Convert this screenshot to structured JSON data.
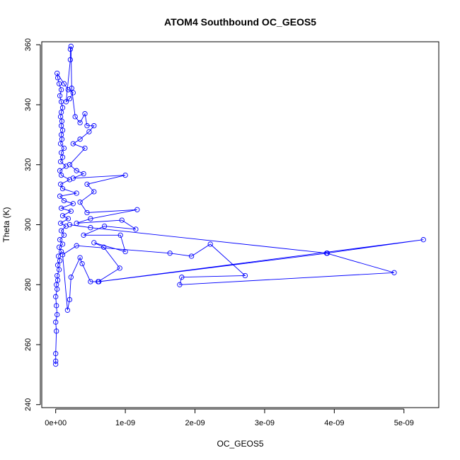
{
  "chart_data": {
    "type": "line",
    "title": "ATOM4 Southbound OC_GEOS5",
    "xlabel": "OC_GEOS5",
    "ylabel": "Theta (K)",
    "xlim": [
      -2e-10,
      5.5e-09
    ],
    "ylim": [
      239,
      361
    ],
    "x_ticks": [
      {
        "value": 0,
        "label": "0e+00"
      },
      {
        "value": 1e-09,
        "label": "1e-09"
      },
      {
        "value": 2e-09,
        "label": "2e-09"
      },
      {
        "value": 3e-09,
        "label": "3e-09"
      },
      {
        "value": 4e-09,
        "label": "4e-09"
      },
      {
        "value": 5e-09,
        "label": "5e-09"
      }
    ],
    "y_ticks": [
      {
        "value": 240,
        "label": "240"
      },
      {
        "value": 260,
        "label": "260"
      },
      {
        "value": 280,
        "label": "280"
      },
      {
        "value": 300,
        "label": "300"
      },
      {
        "value": 320,
        "label": "320"
      },
      {
        "value": 340,
        "label": "340"
      },
      {
        "value": 360,
        "label": "360"
      }
    ],
    "grid": false,
    "series_color": "#0000ff",
    "marker": "open-circle",
    "series": [
      {
        "name": "",
        "points": [
          [
            0.0,
            253.5
          ],
          [
            0.0,
            254.5
          ],
          [
            0.0,
            257.0
          ],
          [
            1e-11,
            264.5
          ],
          [
            0.0,
            267.5
          ],
          [
            2e-11,
            270.0
          ],
          [
            1e-11,
            273.0
          ],
          [
            0.0,
            276.0
          ],
          [
            2e-11,
            278.5
          ],
          [
            1e-11,
            280.0
          ],
          [
            3e-11,
            281.5
          ],
          [
            2e-11,
            283.0
          ],
          [
            5e-11,
            285.0
          ],
          [
            3e-11,
            286.5
          ],
          [
            6e-11,
            288.0
          ],
          [
            4e-11,
            289.5
          ],
          [
            8e-11,
            291.0
          ],
          [
            5e-11,
            292.5
          ],
          [
            1e-10,
            293.5
          ],
          [
            6e-11,
            295.0
          ],
          [
            1.2e-10,
            296.5
          ],
          [
            8e-11,
            298.0
          ],
          [
            1.5e-10,
            299.5
          ],
          [
            7e-11,
            300.5
          ],
          [
            1.8e-10,
            302.0
          ],
          [
            1e-10,
            303.0
          ],
          [
            2.2e-10,
            304.5
          ],
          [
            8e-11,
            305.5
          ],
          [
            2.5e-10,
            307.0
          ],
          [
            1.2e-10,
            308.0
          ],
          [
            6e-11,
            309.5
          ],
          [
            3e-10,
            310.5
          ],
          [
            1e-10,
            312.0
          ],
          [
            7e-11,
            313.5
          ],
          [
            2e-10,
            315.0
          ],
          [
            8e-11,
            316.5
          ],
          [
            6e-11,
            318.0
          ],
          [
            1.5e-10,
            319.5
          ],
          [
            7e-11,
            321.0
          ],
          [
            1e-10,
            322.5
          ],
          [
            8e-11,
            324.0
          ],
          [
            1.2e-10,
            325.5
          ],
          [
            7e-11,
            327.0
          ],
          [
            9e-11,
            328.5
          ],
          [
            8e-11,
            330.0
          ],
          [
            1e-10,
            331.5
          ],
          [
            8e-11,
            333.0
          ],
          [
            9e-11,
            334.5
          ],
          [
            7e-11,
            336.0
          ],
          [
            8e-11,
            337.5
          ],
          [
            1e-10,
            339.0
          ],
          [
            8e-11,
            341.0
          ],
          [
            6e-11,
            343.0
          ],
          [
            8e-11,
            345.0
          ],
          [
            5e-11,
            347.0
          ],
          [
            3e-11,
            349.0
          ],
          [
            2e-11,
            350.5
          ],
          [
            1.2e-10,
            347.0
          ],
          [
            1.8e-10,
            345.0
          ],
          [
            2.5e-10,
            344.0
          ],
          [
            2e-10,
            342.0
          ],
          [
            1.5e-10,
            341.0
          ],
          [
            2.1e-10,
            355.0
          ],
          [
            2.1e-10,
            358.5
          ],
          [
            2.2e-10,
            359.5
          ],
          [
            2.3e-10,
            345.5
          ],
          [
            2.8e-10,
            336.0
          ],
          [
            3.5e-10,
            334.0
          ],
          [
            4.2e-10,
            337.0
          ],
          [
            4.5e-10,
            333.0
          ],
          [
            5.5e-10,
            333.0
          ],
          [
            4.8e-10,
            331.0
          ],
          [
            3.5e-10,
            328.5
          ],
          [
            2.5e-10,
            327.0
          ],
          [
            4.2e-10,
            325.5
          ],
          [
            2e-10,
            320.0
          ],
          [
            3e-10,
            318.0
          ],
          [
            4e-10,
            317.0
          ],
          [
            2.5e-10,
            315.5
          ],
          [
            1e-09,
            316.5
          ],
          [
            4.5e-10,
            313.5
          ],
          [
            5.5e-10,
            311.0
          ],
          [
            3.5e-10,
            307.5
          ],
          [
            4.5e-10,
            304.0
          ],
          [
            1.17e-09,
            305.0
          ],
          [
            5e-10,
            302.0
          ],
          [
            3e-10,
            300.5
          ],
          [
            9.5e-10,
            301.5
          ],
          [
            1.15e-09,
            298.5
          ],
          [
            7e-10,
            299.5
          ],
          [
            4e-10,
            296.5
          ],
          [
            9.3e-10,
            296.5
          ],
          [
            1e-09,
            291.0
          ],
          [
            5.5e-10,
            294.0
          ],
          [
            6.9e-10,
            292.5
          ],
          [
            9.2e-10,
            285.5
          ],
          [
            6.1e-10,
            281.0
          ],
          [
            5e-10,
            281.0
          ],
          [
            3.8e-10,
            287.0
          ],
          [
            3.5e-10,
            289.0
          ],
          [
            2.2e-10,
            282.5
          ],
          [
            2e-10,
            275.0
          ],
          [
            1.7e-10,
            271.5
          ],
          [
            1e-10,
            290.0
          ],
          [
            3e-10,
            293.0
          ],
          [
            1.64e-09,
            290.5
          ],
          [
            1.95e-09,
            289.5
          ],
          [
            2.22e-09,
            293.5
          ],
          [
            2.72e-09,
            283.0
          ],
          [
            1.81e-09,
            282.5
          ],
          [
            1.78e-09,
            280.0
          ],
          [
            4.86e-09,
            284.0
          ],
          [
            3.89e-09,
            290.5
          ],
          [
            5.28e-09,
            295.0
          ],
          [
            6.2e-10,
            281.0
          ],
          [
            3.9e-09,
            290.5
          ],
          [
            5e-10,
            299.0
          ],
          [
            2e-10,
            300.0
          ]
        ]
      }
    ]
  }
}
